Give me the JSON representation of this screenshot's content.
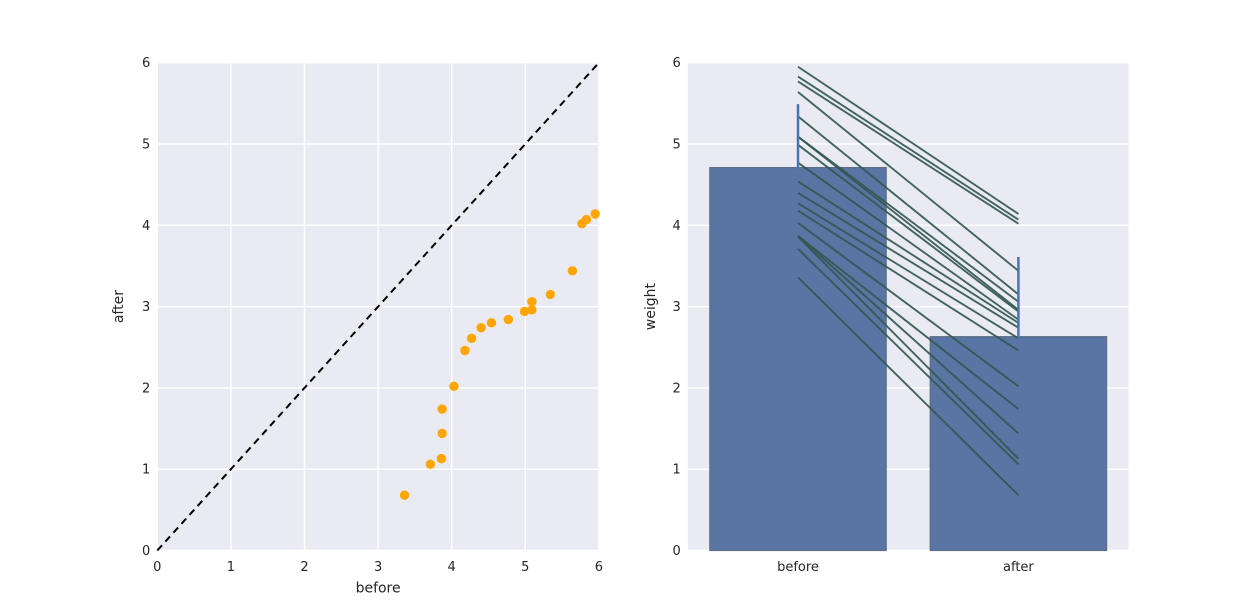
{
  "figure": {
    "background": "#ffffff"
  },
  "chart_data": [
    {
      "type": "scatter",
      "title": "",
      "xlabel": "before",
      "ylabel": "after",
      "xlim": [
        0,
        6
      ],
      "ylim": [
        0,
        6
      ],
      "xticks": [
        "0",
        "1",
        "2",
        "3",
        "4",
        "5",
        "6"
      ],
      "yticks": [
        "0",
        "1",
        "2",
        "3",
        "4",
        "5",
        "6"
      ],
      "grid": true,
      "legend": "none",
      "plot_bg": "#eaeaf2",
      "grid_color": "#ffffff",
      "tick_color": "#262626",
      "marker_color": "#ffa500",
      "identity_line": {
        "from": [
          0,
          0
        ],
        "to": [
          6,
          6
        ],
        "color": "#000000",
        "style": "dashed"
      },
      "points": [
        [
          3.36,
          0.68
        ],
        [
          3.71,
          1.06
        ],
        [
          3.86,
          1.13
        ],
        [
          3.87,
          1.44
        ],
        [
          3.87,
          1.74
        ],
        [
          4.03,
          2.02
        ],
        [
          4.18,
          2.46
        ],
        [
          4.27,
          2.61
        ],
        [
          4.4,
          2.74
        ],
        [
          4.54,
          2.8
        ],
        [
          4.77,
          2.84
        ],
        [
          4.99,
          2.94
        ],
        [
          5.09,
          2.96
        ],
        [
          5.09,
          3.06
        ],
        [
          5.34,
          3.15
        ],
        [
          5.64,
          3.44
        ],
        [
          5.77,
          4.02
        ],
        [
          5.83,
          4.07
        ],
        [
          5.95,
          4.14
        ]
      ]
    },
    {
      "type": "bar",
      "title": "",
      "xlabel": "",
      "ylabel": "weight",
      "categories": [
        "before",
        "after"
      ],
      "values": [
        4.71,
        2.63
      ],
      "error_upper": [
        5.49,
        3.61
      ],
      "ylim": [
        0,
        6
      ],
      "yticks": [
        "0",
        "1",
        "2",
        "3",
        "4",
        "5",
        "6"
      ],
      "grid": true,
      "legend": "none",
      "plot_bg": "#eaeaf2",
      "grid_color": "#ffffff",
      "tick_color": "#262626",
      "bar_color": "#5875a3",
      "bar_edge_color": "#5f6d85",
      "errorbar_color": "#4c72b0",
      "paired_line_color": "#335852",
      "paired_lines": [
        [
          3.36,
          0.68
        ],
        [
          3.71,
          1.06
        ],
        [
          3.86,
          1.13
        ],
        [
          3.87,
          1.44
        ],
        [
          3.87,
          1.74
        ],
        [
          4.03,
          2.02
        ],
        [
          4.18,
          2.46
        ],
        [
          4.27,
          2.61
        ],
        [
          4.4,
          2.74
        ],
        [
          4.54,
          2.8
        ],
        [
          4.77,
          2.84
        ],
        [
          4.99,
          2.94
        ],
        [
          5.09,
          2.96
        ],
        [
          5.09,
          3.06
        ],
        [
          5.34,
          3.15
        ],
        [
          5.64,
          3.44
        ],
        [
          5.77,
          4.02
        ],
        [
          5.83,
          4.07
        ],
        [
          5.95,
          4.14
        ]
      ]
    }
  ]
}
